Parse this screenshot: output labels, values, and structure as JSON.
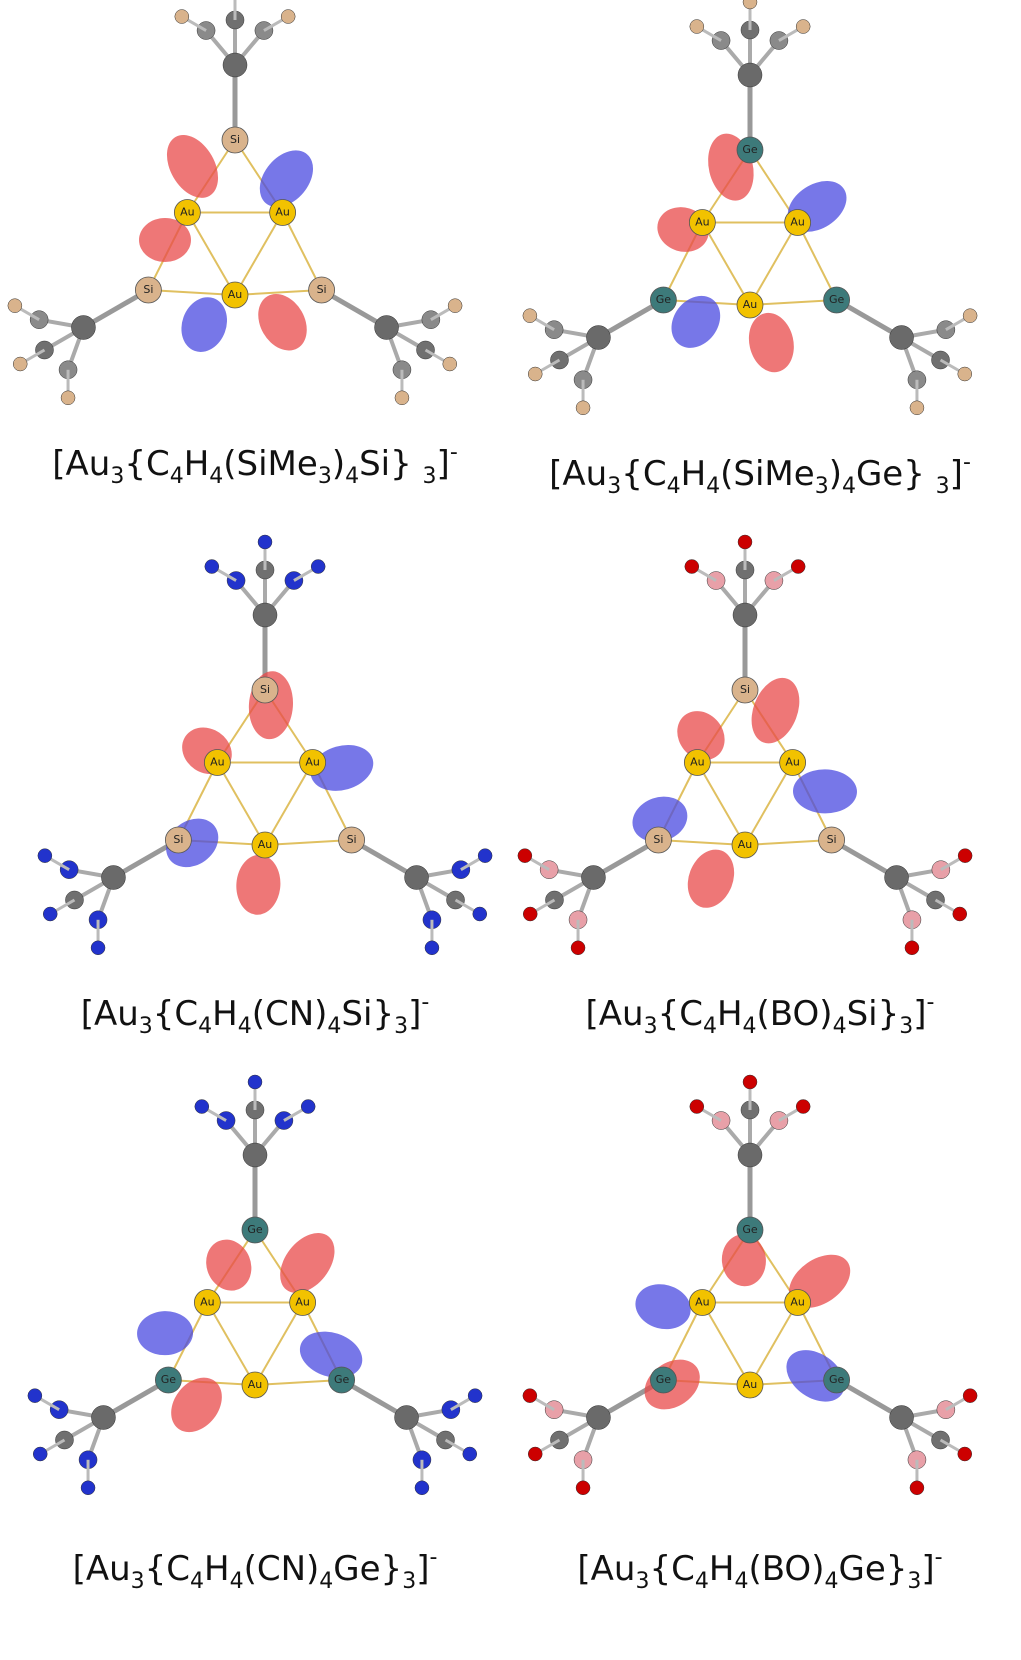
{
  "panels": [
    {
      "caption": [
        {
          "text": "[Au",
          "style": "base"
        },
        {
          "text": "3",
          "style": "sub"
        },
        {
          "text": "{C",
          "style": "base"
        },
        {
          "text": "4",
          "style": "sub"
        },
        {
          "text": "H",
          "style": "base"
        },
        {
          "text": "4",
          "style": "sub"
        },
        {
          "text": "(SiMe",
          "style": "base"
        },
        {
          "text": "3",
          "style": "sub"
        },
        {
          "text": ")",
          "style": "base"
        },
        {
          "text": "4",
          "style": "sub"
        },
        {
          "text": "Si} ",
          "style": "base"
        },
        {
          "text": "3",
          "style": "sub"
        },
        {
          "text": "]",
          "style": "base"
        },
        {
          "text": "-",
          "style": "sup"
        }
      ],
      "atoms": [
        "Au",
        "Au",
        "Au",
        "Si",
        "Si",
        "Si"
      ],
      "ball_color": "#8a8a8a",
      "tip_color": "#d9b38c"
    },
    {
      "caption": [
        {
          "text": "[Au",
          "style": "base"
        },
        {
          "text": "3",
          "style": "sub"
        },
        {
          "text": "{C",
          "style": "base"
        },
        {
          "text": "4",
          "style": "sub"
        },
        {
          "text": "H",
          "style": "base"
        },
        {
          "text": "4",
          "style": "sub"
        },
        {
          "text": "(SiMe",
          "style": "base"
        },
        {
          "text": "3",
          "style": "sub"
        },
        {
          "text": ")",
          "style": "base"
        },
        {
          "text": "4",
          "style": "sub"
        },
        {
          "text": "Ge} ",
          "style": "base"
        },
        {
          "text": "3",
          "style": "sub"
        },
        {
          "text": "]",
          "style": "base"
        },
        {
          "text": "-",
          "style": "sup"
        }
      ],
      "atoms": [
        "Au",
        "Au",
        "Au",
        "Ge",
        "Ge",
        "Ge"
      ],
      "ball_color": "#8a8a8a",
      "tip_color": "#d9b38c"
    },
    {
      "caption": [
        {
          "text": "[Au",
          "style": "base"
        },
        {
          "text": "3",
          "style": "sub"
        },
        {
          "text": "{C",
          "style": "base"
        },
        {
          "text": "4",
          "style": "sub"
        },
        {
          "text": "H",
          "style": "base"
        },
        {
          "text": "4",
          "style": "sub"
        },
        {
          "text": "(CN)",
          "style": "base"
        },
        {
          "text": "4",
          "style": "sub"
        },
        {
          "text": "Si}",
          "style": "base"
        },
        {
          "text": "3",
          "style": "sub"
        },
        {
          "text": "]",
          "style": "base"
        },
        {
          "text": "-",
          "style": "sup"
        }
      ],
      "atoms": [
        "Au",
        "Au",
        "Au",
        "Si",
        "Si",
        "Si"
      ],
      "ball_color": "#2233cc",
      "tip_color": "#2233cc"
    },
    {
      "caption": [
        {
          "text": "[Au",
          "style": "base"
        },
        {
          "text": "3",
          "style": "sub"
        },
        {
          "text": "{C",
          "style": "base"
        },
        {
          "text": "4",
          "style": "sub"
        },
        {
          "text": "H",
          "style": "base"
        },
        {
          "text": "4",
          "style": "sub"
        },
        {
          "text": "(BO)",
          "style": "base"
        },
        {
          "text": "4",
          "style": "sub"
        },
        {
          "text": "Si}",
          "style": "base"
        },
        {
          "text": "3",
          "style": "sub"
        },
        {
          "text": "]",
          "style": "base"
        },
        {
          "text": "-",
          "style": "sup"
        }
      ],
      "atoms": [
        "Au",
        "Au",
        "Au",
        "Si",
        "Si",
        "Si"
      ],
      "ball_color": "#e8a0a8",
      "tip_color": "#cc0000"
    },
    {
      "caption": [
        {
          "text": "[Au",
          "style": "base"
        },
        {
          "text": "3",
          "style": "sub"
        },
        {
          "text": "{C",
          "style": "base"
        },
        {
          "text": "4",
          "style": "sub"
        },
        {
          "text": "H",
          "style": "base"
        },
        {
          "text": "4",
          "style": "sub"
        },
        {
          "text": "(CN)",
          "style": "base"
        },
        {
          "text": "4",
          "style": "sub"
        },
        {
          "text": "Ge}",
          "style": "base"
        },
        {
          "text": "3",
          "style": "sub"
        },
        {
          "text": "]",
          "style": "base"
        },
        {
          "text": "-",
          "style": "sup"
        }
      ],
      "atoms": [
        "Au",
        "Au",
        "Au",
        "Ge",
        "Ge",
        "Ge"
      ],
      "ball_color": "#2233cc",
      "tip_color": "#2233cc"
    },
    {
      "caption": [
        {
          "text": "[Au",
          "style": "base"
        },
        {
          "text": "3",
          "style": "sub"
        },
        {
          "text": "{C",
          "style": "base"
        },
        {
          "text": "4",
          "style": "sub"
        },
        {
          "text": "H",
          "style": "base"
        },
        {
          "text": "4",
          "style": "sub"
        },
        {
          "text": "(BO)",
          "style": "base"
        },
        {
          "text": "4",
          "style": "sub"
        },
        {
          "text": "Ge}",
          "style": "base"
        },
        {
          "text": "3",
          "style": "sub"
        },
        {
          "text": "]",
          "style": "base"
        },
        {
          "text": "-",
          "style": "sup"
        }
      ],
      "atoms": [
        "Au",
        "Au",
        "Au",
        "Ge",
        "Ge",
        "Ge"
      ],
      "ball_color": "#e8a0a8",
      "tip_color": "#cc0000"
    }
  ]
}
